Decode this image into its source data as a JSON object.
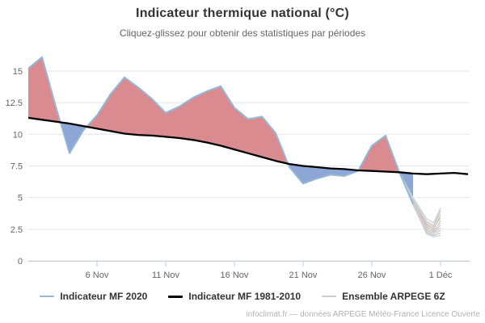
{
  "header": {
    "title": "Indicateur thermique national (°C)",
    "subtitle": "Cliquez-glissez pour obtenir des statistiques par périodes"
  },
  "footer": {
    "credit": "infoclimat.fr — données ARPEGE Météo-France Licence Ouverte"
  },
  "legend": {
    "items": [
      {
        "label": "Indicateur MF 2020",
        "color": "#94b9d8"
      },
      {
        "label": "Indicateur MF 1981-2010",
        "color": "#000000"
      },
      {
        "label": "Ensemble ARPEGE 6Z",
        "color": "#cccccc"
      }
    ]
  },
  "chart_data": {
    "type": "line",
    "title": "Indicateur thermique national (°C)",
    "subtitle": "Cliquez-glissez pour obtenir des statistiques par périodes",
    "xlabel": "",
    "ylabel": "",
    "grid": true,
    "legend_position": "bottom",
    "x_unit": "day number counted from 1 Nov (31 = 1 Déc)",
    "xlim": [
      1,
      33.12
    ],
    "ylim": [
      0,
      16.4
    ],
    "y_ticks": [
      0,
      2.5,
      5,
      7.5,
      10,
      12.5,
      15
    ],
    "x_ticks": [
      {
        "day": 6,
        "label": "6 Nov"
      },
      {
        "day": 11,
        "label": "11 Nov"
      },
      {
        "day": 16,
        "label": "16 Nov"
      },
      {
        "day": 21,
        "label": "21 Nov"
      },
      {
        "day": 26,
        "label": "26 Nov"
      },
      {
        "day": 31,
        "label": "1 Déc"
      }
    ],
    "band_colors": {
      "above": "#d98b90",
      "below": "#8da6d6"
    },
    "colors": {
      "grid": "#e6e6e6",
      "axis_line": "#c3cedb",
      "axis_label": "#666666",
      "mf2020_line": "#94b9d8",
      "normal_line": "#000000"
    },
    "series": [
      {
        "name": "Indicateur MF 2020",
        "days": [
          1,
          2,
          3,
          4,
          5,
          6,
          7,
          8,
          9,
          10,
          11,
          12,
          13,
          14,
          15,
          16,
          17,
          18,
          19,
          20,
          21,
          22,
          23,
          24,
          25,
          26,
          27,
          28,
          29
        ],
        "values": [
          15.2,
          16.1,
          12.2,
          8.5,
          10.3,
          11.5,
          13.2,
          14.5,
          13.7,
          12.8,
          11.7,
          12.2,
          12.9,
          13.4,
          13.8,
          12.1,
          11.2,
          11.4,
          10.1,
          7.4,
          6.1,
          6.5,
          6.8,
          6.7,
          7.1,
          9.1,
          9.9,
          7.0,
          4.5
        ]
      },
      {
        "name": "Indicateur MF 1981-2010",
        "days": [
          1,
          2,
          3,
          4,
          5,
          6,
          7,
          8,
          9,
          10,
          11,
          12,
          13,
          14,
          15,
          16,
          17,
          18,
          19,
          20,
          21,
          22,
          23,
          24,
          25,
          26,
          27,
          28,
          29,
          30,
          31,
          32,
          33
        ],
        "values": [
          11.3,
          11.15,
          11.0,
          10.85,
          10.65,
          10.45,
          10.25,
          10.05,
          9.95,
          9.9,
          9.8,
          9.7,
          9.55,
          9.35,
          9.1,
          8.8,
          8.5,
          8.2,
          7.9,
          7.65,
          7.5,
          7.4,
          7.3,
          7.25,
          7.15,
          7.1,
          7.05,
          7.0,
          6.9,
          6.85,
          6.9,
          6.95,
          6.85
        ]
      }
    ],
    "ensemble": {
      "name": "Ensemble ARPEGE 6Z",
      "days": [
        28,
        29,
        30,
        30.5,
        31
      ],
      "member_colors": [
        "#cccccc",
        "#d6c6a0",
        "#b5d1b5",
        "#e4bcbf",
        "#b3c6e0",
        "#cfbad8",
        "#b8d4d4",
        "#ddd0aa",
        "#c6c6c6",
        "#dfc8c8",
        "#c2cfe6",
        "#c9dcc9"
      ],
      "members": [
        [
          7.0,
          4.6,
          2.6,
          2.4,
          3.0
        ],
        [
          7.0,
          4.8,
          2.9,
          2.6,
          3.4
        ],
        [
          7.0,
          4.5,
          2.4,
          2.2,
          2.6
        ],
        [
          7.0,
          4.9,
          3.1,
          2.8,
          4.0
        ],
        [
          7.0,
          4.4,
          2.2,
          2.0,
          2.2
        ],
        [
          7.0,
          4.7,
          2.7,
          2.3,
          2.8
        ],
        [
          7.0,
          5.0,
          3.3,
          3.0,
          4.2
        ],
        [
          7.0,
          4.5,
          2.3,
          2.1,
          2.4
        ],
        [
          7.0,
          4.8,
          2.8,
          2.5,
          3.6
        ],
        [
          7.0,
          4.6,
          2.5,
          2.2,
          3.2
        ],
        [
          7.0,
          4.4,
          2.1,
          1.9,
          2.0
        ],
        [
          7.0,
          4.9,
          3.0,
          2.7,
          3.8
        ]
      ]
    }
  }
}
